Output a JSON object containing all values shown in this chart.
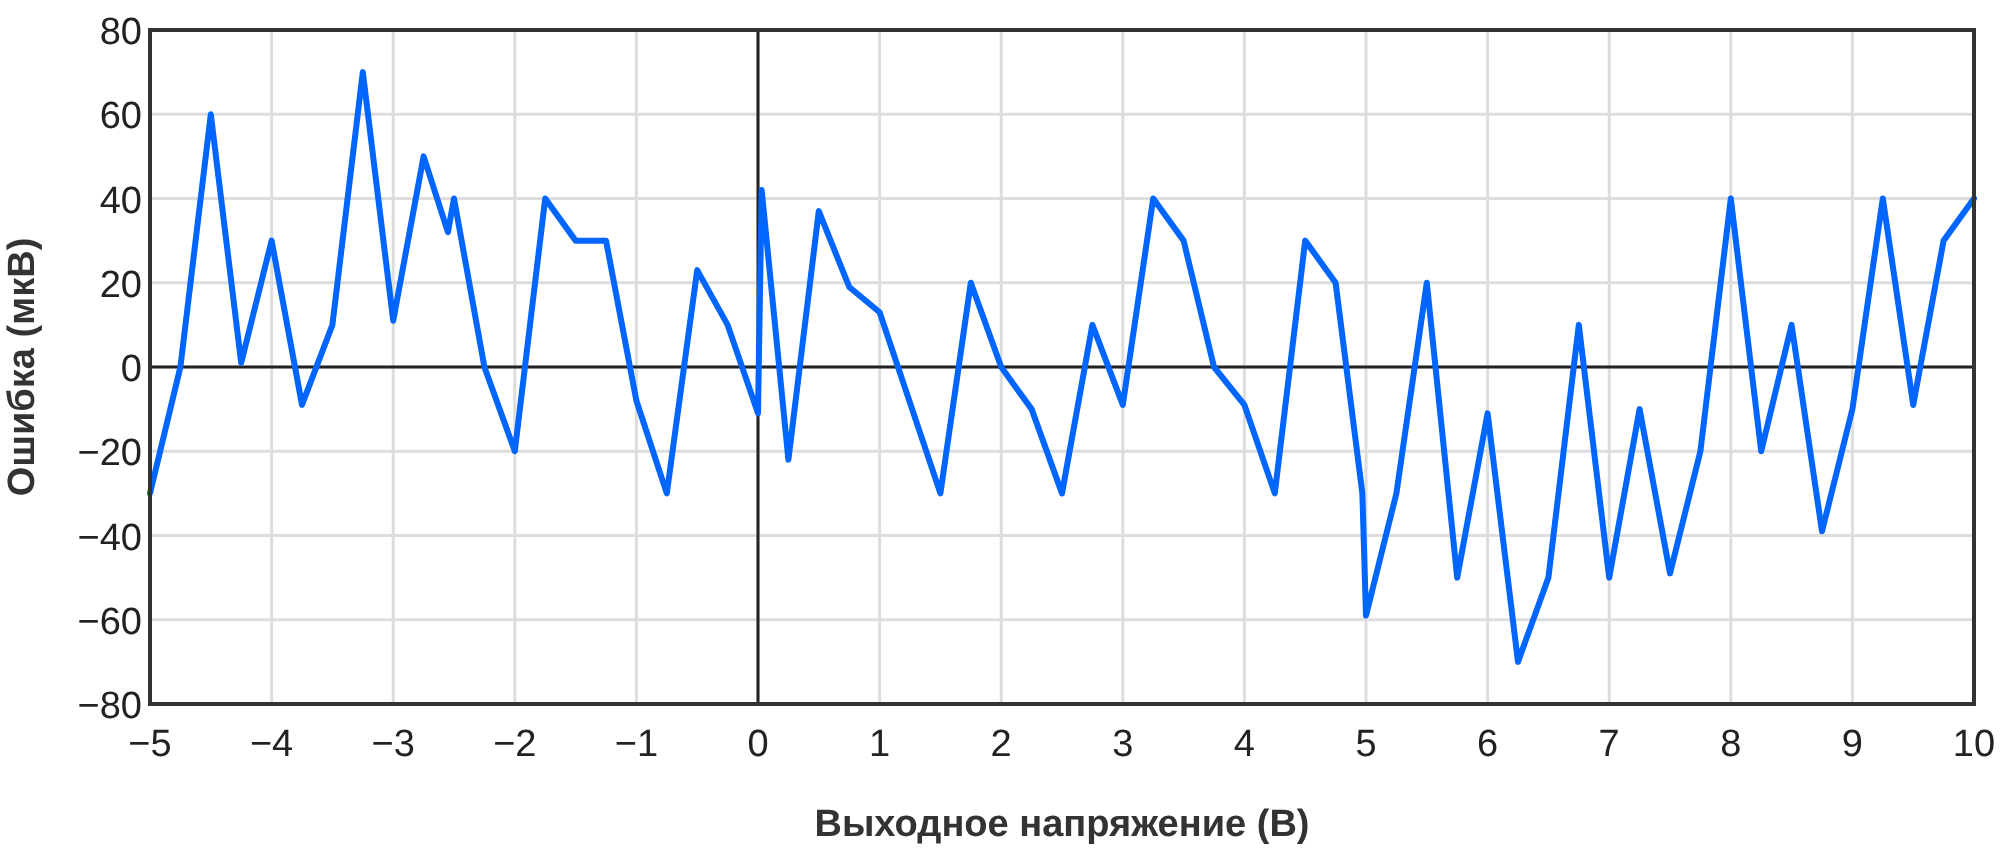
{
  "chart_data": {
    "type": "line",
    "xlabel": "Выходное напряжение (В)",
    "ylabel": "Ошибка (мкВ)",
    "xlim": [
      -5,
      10
    ],
    "ylim": [
      -80,
      80
    ],
    "xticks": [
      {
        "value": -5,
        "label": "−5"
      },
      {
        "value": -4,
        "label": "−4"
      },
      {
        "value": -3,
        "label": "−3"
      },
      {
        "value": -2,
        "label": "−2"
      },
      {
        "value": -1,
        "label": "−1"
      },
      0,
      1,
      2,
      3,
      4,
      5,
      6,
      7,
      8,
      9,
      10
    ],
    "yticks": [
      {
        "value": -80,
        "label": "−80"
      },
      {
        "value": -60,
        "label": "−60"
      },
      {
        "value": -40,
        "label": "−40"
      },
      {
        "value": -20,
        "label": "−20"
      },
      0,
      20,
      40,
      60,
      80
    ],
    "grid": true,
    "marker": "none",
    "line_style": "solid",
    "series": [
      {
        "color": "#0066ff",
        "x": [
          -5,
          -4.75,
          -4.5,
          -4.25,
          -4,
          -3.75,
          -3.5,
          -3.25,
          -3,
          -2.75,
          -2.55,
          -2.5,
          -2.25,
          -2,
          -1.75,
          -1.5,
          -1.25,
          -1,
          -0.75,
          -0.5,
          -0.25,
          0,
          0.03,
          0.25,
          0.5,
          0.75,
          1,
          1.5,
          1.75,
          2,
          2.25,
          2.5,
          2.75,
          3,
          3.25,
          3.5,
          3.75,
          4,
          4.25,
          4.5,
          4.75,
          4.97,
          5,
          5.25,
          5.5,
          5.75,
          6,
          6.25,
          6.5,
          6.75,
          7,
          7.25,
          7.5,
          7.75,
          8,
          8.25,
          8.5,
          8.75,
          9,
          9.25,
          9.5,
          9.75,
          10
        ],
        "values": [
          -30,
          0,
          60,
          1,
          30,
          -9,
          10,
          70,
          11,
          50,
          32,
          40,
          0,
          -20,
          40,
          30,
          30,
          -8,
          -30,
          23,
          10,
          -11,
          42,
          -22,
          37,
          19,
          13,
          -30,
          20,
          0,
          -10,
          -30,
          10,
          -9,
          40,
          30,
          0,
          -9,
          -30,
          30,
          20,
          -30,
          -59,
          -30,
          20,
          -50,
          -11,
          -70,
          -50,
          10,
          -50,
          -10,
          -49,
          -20,
          40,
          -20,
          10,
          -39,
          -10,
          40,
          -9,
          30,
          40
        ]
      }
    ]
  }
}
